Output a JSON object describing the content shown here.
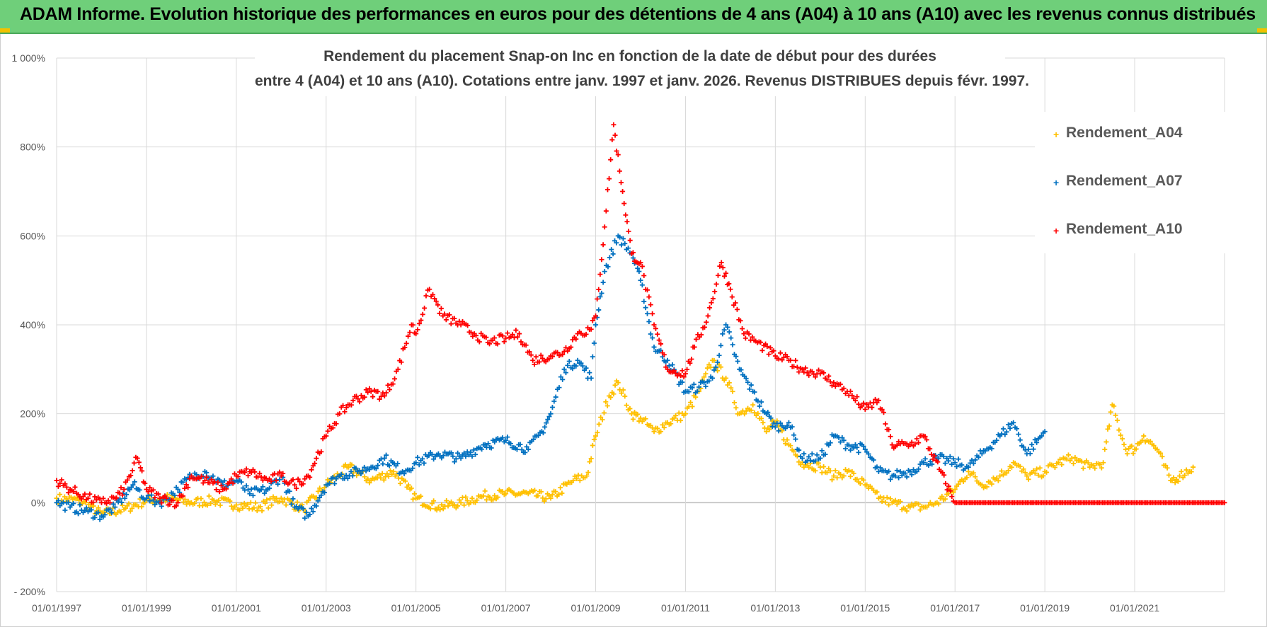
{
  "header": {
    "title": "ADAM Informe. Evolution historique des performances en euros pour des détentions de 4 ans (A04) à 10 ans (A10) avec les revenus connus distribués",
    "accent_color": "#6fcf7a",
    "corner_color": "#f2c200"
  },
  "chart_data": {
    "type": "scatter",
    "title_line1": "Rendement du placement Snap-on Inc en fonction de la date de début pour des durées",
    "title_line2": "entre 4 (A04) et 10 ans (A10). Cotations entre janv. 1997 et janv. 2026. Revenus DISTRIBUES depuis févr. 1997.",
    "xlabel": "",
    "ylabel": "",
    "x_range": [
      1997.0,
      2023.0
    ],
    "ylim": [
      -200,
      1000
    ],
    "y_ticks": [
      -200,
      0,
      200,
      400,
      600,
      800,
      1000
    ],
    "y_tick_labels": [
      "- 200%",
      "0%",
      "200%",
      "400%",
      "600%",
      "800%",
      "1 000%"
    ],
    "x_ticks": [
      1997,
      1999,
      2001,
      2003,
      2005,
      2007,
      2009,
      2011,
      2013,
      2015,
      2017,
      2019,
      2021
    ],
    "x_tick_labels": [
      "01/01/1997",
      "01/01/1999",
      "01/01/2001",
      "01/01/2003",
      "01/01/2005",
      "01/01/2007",
      "01/01/2009",
      "01/01/2011",
      "01/01/2013",
      "01/01/2015",
      "01/01/2017",
      "01/01/2019",
      "01/01/2021"
    ],
    "grid": true,
    "legend_position": "top-right",
    "marker": "+",
    "series": [
      {
        "name": "Rendement_A04",
        "color": "#ffc000",
        "x": [
          1997.0,
          1997.5,
          1998.0,
          1998.5,
          1999.0,
          1999.5,
          2000.0,
          2000.5,
          2001.0,
          2001.5,
          2002.0,
          2002.5,
          2003.0,
          2003.5,
          2004.0,
          2004.5,
          2004.8,
          2005.0,
          2005.5,
          2006.0,
          2006.5,
          2007.0,
          2007.5,
          2008.0,
          2008.5,
          2008.8,
          2009.0,
          2009.3,
          2009.5,
          2009.8,
          2010.0,
          2010.3,
          2010.6,
          2011.0,
          2011.3,
          2011.6,
          2011.9,
          2012.2,
          2012.5,
          2012.8,
          2013.0,
          2013.3,
          2013.6,
          2014.0,
          2014.3,
          2014.6,
          2015.0,
          2015.3,
          2015.6,
          2016.0,
          2016.3,
          2016.6,
          2017.0,
          2017.3,
          2017.6,
          2018.0,
          2018.3,
          2018.6,
          2019.0,
          2019.3,
          2019.6,
          2020.0,
          2020.3,
          2020.5,
          2020.8,
          2021.0,
          2021.2,
          2021.5,
          2021.8,
          2022.0,
          2022.3
        ],
        "y": [
          10,
          5,
          -25,
          -15,
          5,
          10,
          0,
          5,
          -5,
          -10,
          10,
          -15,
          40,
          80,
          50,
          70,
          35,
          10,
          -10,
          0,
          15,
          20,
          20,
          10,
          50,
          60,
          150,
          240,
          270,
          200,
          190,
          160,
          180,
          200,
          250,
          320,
          280,
          200,
          220,
          160,
          180,
          130,
          90,
          80,
          60,
          70,
          40,
          10,
          0,
          -10,
          -10,
          0,
          30,
          70,
          40,
          60,
          90,
          60,
          70,
          90,
          100,
          80,
          90,
          220,
          120,
          120,
          150,
          120,
          50,
          60,
          80
        ]
      },
      {
        "name": "Rendement_A07",
        "color": "#0070c0",
        "x": [
          1997.0,
          1997.3,
          1997.7,
          1998.0,
          1998.3,
          1998.7,
          1999.0,
          1999.3,
          1999.7,
          2000.0,
          2000.3,
          2000.7,
          2001.0,
          2001.3,
          2001.7,
          2002.0,
          2002.3,
          2002.6,
          2003.0,
          2003.3,
          2003.7,
          2004.0,
          2004.3,
          2004.7,
          2005.0,
          2005.5,
          2006.0,
          2006.5,
          2007.0,
          2007.5,
          2007.8,
          2008.0,
          2008.3,
          2008.6,
          2008.9,
          2009.0,
          2009.2,
          2009.5,
          2009.8,
          2010.0,
          2010.3,
          2010.6,
          2011.0,
          2011.3,
          2011.6,
          2011.9,
          2012.2,
          2012.5,
          2012.8,
          2013.0,
          2013.3,
          2013.6,
          2014.0,
          2014.3,
          2014.6,
          2015.0,
          2015.3,
          2015.6,
          2016.0,
          2016.3,
          2016.6,
          2017.0,
          2017.3,
          2017.6,
          2018.0,
          2018.3,
          2018.6,
          2019.0
        ],
        "y": [
          0,
          -10,
          -20,
          -30,
          -10,
          40,
          10,
          0,
          30,
          60,
          70,
          40,
          50,
          20,
          30,
          60,
          -10,
          -30,
          40,
          60,
          70,
          80,
          100,
          70,
          90,
          110,
          100,
          130,
          140,
          120,
          160,
          200,
          300,
          320,
          280,
          400,
          520,
          600,
          560,
          500,
          350,
          320,
          250,
          260,
          280,
          400,
          300,
          250,
          200,
          170,
          180,
          100,
          100,
          150,
          130,
          120,
          70,
          60,
          70,
          90,
          100,
          90,
          80,
          110,
          150,
          180,
          110,
          160
        ]
      },
      {
        "name": "Rendement_A10",
        "color": "#ff0000",
        "x": [
          1997.0,
          1997.3,
          1997.7,
          1998.0,
          1998.3,
          1998.5,
          1998.8,
          1999.0,
          1999.3,
          1999.7,
          2000.0,
          2000.3,
          2000.7,
          2001.0,
          2001.3,
          2001.7,
          2002.0,
          2002.3,
          2002.6,
          2003.0,
          2003.3,
          2003.6,
          2004.0,
          2004.3,
          2004.6,
          2004.9,
          2005.0,
          2005.3,
          2005.6,
          2006.0,
          2006.3,
          2006.6,
          2007.0,
          2007.3,
          2007.6,
          2008.0,
          2008.3,
          2008.6,
          2008.9,
          2009.0,
          2009.2,
          2009.4,
          2009.6,
          2009.8,
          2010.0,
          2010.3,
          2010.6,
          2011.0,
          2011.2,
          2011.5,
          2011.8,
          2012.0,
          2012.3,
          2012.6,
          2013.0,
          2013.3,
          2013.6,
          2014.0,
          2014.3,
          2014.6,
          2015.0,
          2015.3,
          2015.6,
          2016.0,
          2016.3,
          2017.0,
          2018.0,
          2019.0,
          2020.0,
          2021.0,
          2022.0,
          2023.0
        ],
        "y": [
          50,
          30,
          10,
          0,
          10,
          30,
          100,
          30,
          10,
          0,
          60,
          50,
          30,
          60,
          70,
          50,
          60,
          40,
          60,
          150,
          200,
          230,
          250,
          240,
          300,
          400,
          380,
          480,
          420,
          400,
          380,
          360,
          370,
          380,
          320,
          330,
          340,
          380,
          390,
          420,
          620,
          850,
          700,
          560,
          540,
          400,
          300,
          290,
          350,
          420,
          540,
          480,
          380,
          360,
          330,
          320,
          300,
          290,
          270,
          250,
          210,
          230,
          130,
          130,
          150,
          0,
          0,
          0,
          0,
          0,
          0,
          0
        ]
      }
    ]
  }
}
